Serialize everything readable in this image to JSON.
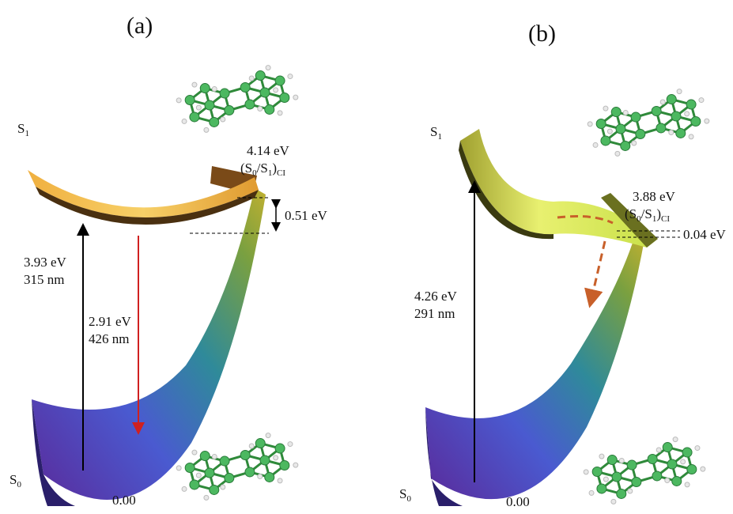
{
  "panels": [
    {
      "label": "(a)",
      "s1": {
        "base": "S",
        "sub": "1"
      },
      "s0": {
        "base": "S",
        "sub": "0"
      },
      "ci_energy": "4.14 eV",
      "ci_label": {
        "open": "(S",
        "sub_a": "0",
        "mid": "/S",
        "sub_b": "1",
        "close": ")",
        "subscript": "CI"
      },
      "gap": "0.51 eV",
      "absorption": {
        "energy": "3.93 eV",
        "wavelength": "315 nm"
      },
      "emission": {
        "energy": "2.91 eV",
        "wavelength": "426 nm"
      },
      "origin": "0.00"
    },
    {
      "label": "(b)",
      "s1": {
        "base": "S",
        "sub": "1"
      },
      "s0": {
        "base": "S",
        "sub": "0"
      },
      "ci_energy": "3.88 eV",
      "ci_label": {
        "open": "(S",
        "sub_a": "0",
        "mid": "/S",
        "sub_b": "1",
        "close": ")",
        "subscript": "CI"
      },
      "gap": "0.04 eV",
      "absorption": {
        "energy": "4.26 eV",
        "wavelength": "291 nm"
      },
      "origin": "0.00"
    }
  ]
}
